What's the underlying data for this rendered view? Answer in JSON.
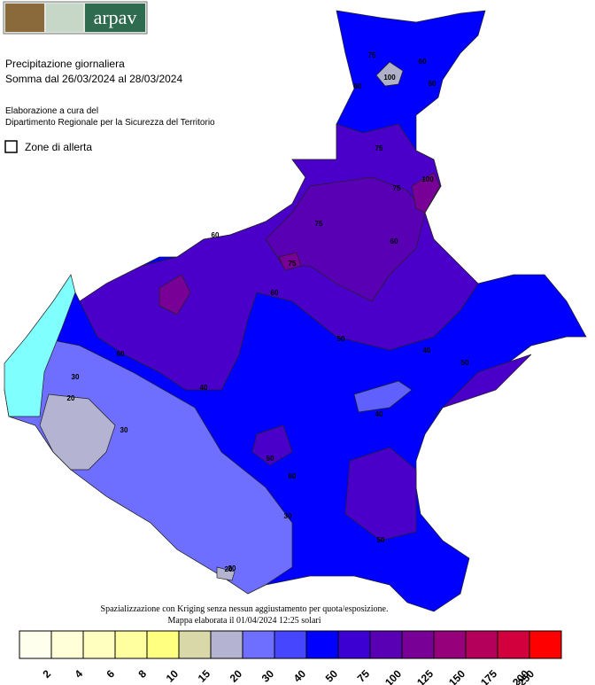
{
  "header": {
    "logo_text": "arpav",
    "title": "Precipitazione giornaliera",
    "subtitle": "Somma dal 26/03/2024 al 28/03/2024",
    "credit_1": "Elaborazione a cura del",
    "credit_2": "Dipartimento Regionale per la Sicurezza del Territorio",
    "toggle": "Zone di allerta"
  },
  "map": {
    "contour_labels": [
      60,
      60,
      75,
      100,
      75,
      60,
      75,
      100,
      75,
      60,
      75,
      60,
      60,
      30,
      20,
      30,
      20,
      50,
      40,
      60,
      50,
      40,
      50,
      40,
      60,
      30,
      50,
      20
    ]
  },
  "footer": {
    "line_1": "Spazializzazione con Kriging senza nessun aggiustamento per quota/esposizione.",
    "line_2": "Mappa elaborata il 01/04/2024 12:25 solari"
  },
  "legend": {
    "colors": [
      "#ffffee",
      "#ffffd8",
      "#ffffc0",
      "#ffffa0",
      "#ffff80",
      "#d8d8a8",
      "#b4b4d2",
      "#6e6eff",
      "#4646ff",
      "#0000ff",
      "#3c00d2",
      "#5a00b4",
      "#780096",
      "#96007a",
      "#b4005a",
      "#d2003c",
      "#ff0000"
    ],
    "labels": [
      2,
      4,
      6,
      8,
      10,
      15,
      20,
      30,
      40,
      50,
      75,
      100,
      125,
      150,
      175,
      200,
      250
    ]
  }
}
